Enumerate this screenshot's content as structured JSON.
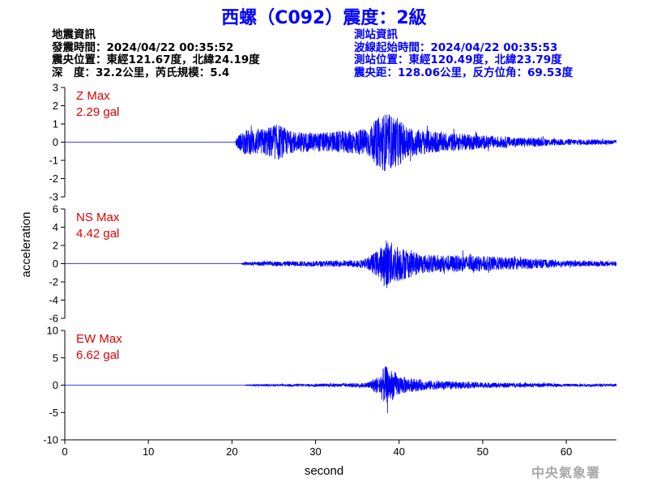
{
  "title": "西螺（C092）震度：2級",
  "earthquake_info": {
    "heading": "地震資訊",
    "origin_time": "發震時間：2024/04/22 00:35:52",
    "epicenter": "震央位置：東經121.67度，北緯24.19度",
    "depth_magnitude": "深　度：32.2公里，芮氏規模：5.4"
  },
  "station_info": {
    "heading": "測站資訊",
    "wave_start": "波線起始時間：2024/04/22 00:35:53",
    "location": "測站位置：東經120.49度，北緯23.79度",
    "distance_azimuth": "震央距：128.06公里，反方位角：69.53度"
  },
  "agency": "中央氣象署",
  "colors": {
    "trace": "#0000ff",
    "max_label": "#e00000",
    "title": "#0000ff"
  },
  "chart_data": {
    "type": "line",
    "xlabel": "second",
    "ylabel": "acceleration",
    "xlim": [
      0,
      66
    ],
    "xticks": [
      0,
      10,
      20,
      30,
      40,
      50,
      60
    ],
    "panels": [
      {
        "name": "Z",
        "max_label": "Z Max",
        "max_value": "2.29 gal",
        "ylim": [
          -3,
          3
        ],
        "yticks": [
          -3,
          -2,
          -1,
          0,
          1,
          2,
          3
        ],
        "envelope": [
          [
            0,
            0
          ],
          [
            20.4,
            0
          ],
          [
            20.6,
            0.4
          ],
          [
            21.5,
            0.8
          ],
          [
            24,
            0.9
          ],
          [
            25.5,
            1.2
          ],
          [
            27,
            0.7
          ],
          [
            30,
            0.6
          ],
          [
            33,
            0.7
          ],
          [
            35,
            0.8
          ],
          [
            36.5,
            1.0
          ],
          [
            37.5,
            1.6
          ],
          [
            38.3,
            1.9
          ],
          [
            39,
            1.8
          ],
          [
            40,
            1.5
          ],
          [
            41,
            1.0
          ],
          [
            43,
            0.8
          ],
          [
            46,
            0.6
          ],
          [
            50,
            0.45
          ],
          [
            55,
            0.3
          ],
          [
            60,
            0.2
          ],
          [
            66,
            0.15
          ]
        ]
      },
      {
        "name": "NS",
        "max_label": "NS Max",
        "max_value": "4.42 gal",
        "ylim": [
          -6,
          6
        ],
        "yticks": [
          -6,
          -4,
          -2,
          0,
          2,
          4,
          6
        ],
        "envelope": [
          [
            0,
            0
          ],
          [
            21,
            0
          ],
          [
            21.5,
            0.2
          ],
          [
            25,
            0.3
          ],
          [
            30,
            0.35
          ],
          [
            34,
            0.4
          ],
          [
            36,
            0.6
          ],
          [
            37.5,
            1.8
          ],
          [
            38.5,
            3.2
          ],
          [
            39.5,
            2.5
          ],
          [
            41,
            1.9
          ],
          [
            43,
            1.2
          ],
          [
            46,
            1.1
          ],
          [
            50,
            1.0
          ],
          [
            55,
            0.7
          ],
          [
            60,
            0.4
          ],
          [
            66,
            0.3
          ]
        ]
      },
      {
        "name": "EW",
        "max_label": "EW Max",
        "max_value": "6.62 gal",
        "ylim": [
          -10,
          10
        ],
        "yticks": [
          -10,
          -5,
          0,
          5,
          10
        ],
        "envelope": [
          [
            0,
            0
          ],
          [
            21.5,
            0
          ],
          [
            22,
            0.15
          ],
          [
            25,
            0.2
          ],
          [
            30,
            0.3
          ],
          [
            34,
            0.4
          ],
          [
            36,
            0.5
          ],
          [
            37.5,
            2.0
          ],
          [
            38.3,
            4.2
          ],
          [
            39,
            3.5
          ],
          [
            40,
            2.2
          ],
          [
            41,
            1.6
          ],
          [
            43,
            1.1
          ],
          [
            46,
            0.8
          ],
          [
            50,
            0.6
          ],
          [
            55,
            0.45
          ],
          [
            60,
            0.3
          ],
          [
            66,
            0.25
          ]
        ]
      }
    ]
  }
}
